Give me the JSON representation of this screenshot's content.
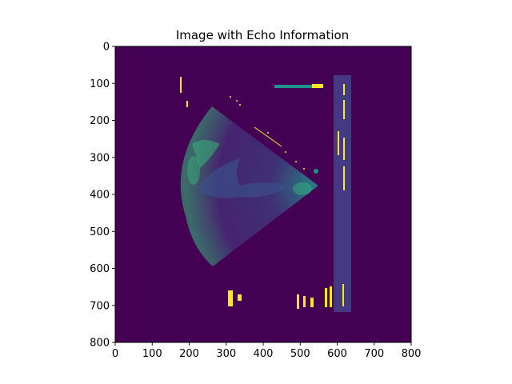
{
  "figure": {
    "title": "Image with Echo Information",
    "x_ticks": [
      "0",
      "100",
      "200",
      "300",
      "400",
      "500",
      "600",
      "700",
      "800"
    ],
    "y_ticks": [
      "0",
      "100",
      "200",
      "300",
      "400",
      "500",
      "600",
      "700",
      "800"
    ],
    "colors": {
      "background": "#440154",
      "panel": "#443a83",
      "highlight": "#fde725",
      "cyan": "#35b779",
      "teal": "#21918c",
      "mid": "#3b528b"
    },
    "image": {
      "description_visible": false,
      "x_range": [
        0,
        800
      ],
      "y_range": [
        0,
        800
      ],
      "y_axis_inverted": true
    }
  }
}
